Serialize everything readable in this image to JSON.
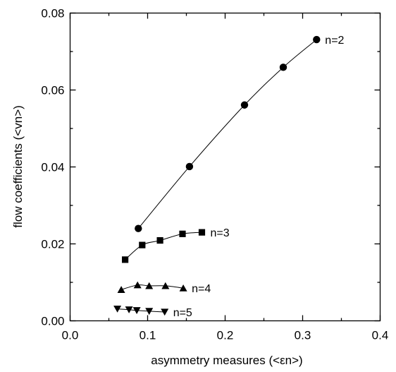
{
  "chart_data": {
    "type": "line",
    "xlabel": "asymmetry measures (<εn>)",
    "ylabel": "flow coefficients (<vn>)",
    "xlim": [
      0.0,
      0.4
    ],
    "ylim": [
      0.0,
      0.08
    ],
    "x_ticks": [
      "0.0",
      "0.1",
      "0.2",
      "0.3",
      "0.4"
    ],
    "y_ticks": [
      "0.00",
      "0.02",
      "0.04",
      "0.06",
      "0.08"
    ],
    "grid": false,
    "legend": "none",
    "series": [
      {
        "name": "n=2",
        "marker": "circle",
        "points": [
          [
            0.088,
            0.024
          ],
          [
            0.154,
            0.0401
          ],
          [
            0.225,
            0.0561
          ],
          [
            0.275,
            0.0659
          ],
          [
            0.318,
            0.0731
          ]
        ]
      },
      {
        "name": "n=3",
        "marker": "square",
        "points": [
          [
            0.071,
            0.0159
          ],
          [
            0.093,
            0.0197
          ],
          [
            0.116,
            0.0209
          ],
          [
            0.145,
            0.0226
          ],
          [
            0.17,
            0.023
          ]
        ]
      },
      {
        "name": "n=4",
        "marker": "triangle-up",
        "points": [
          [
            0.066,
            0.0081
          ],
          [
            0.087,
            0.0093
          ],
          [
            0.102,
            0.0091
          ],
          [
            0.123,
            0.0091
          ],
          [
            0.146,
            0.0085
          ]
        ]
      },
      {
        "name": "n=5",
        "marker": "triangle-down",
        "points": [
          [
            0.061,
            0.0031
          ],
          [
            0.076,
            0.0029
          ],
          [
            0.086,
            0.0027
          ],
          [
            0.102,
            0.0025
          ],
          [
            0.122,
            0.0023
          ]
        ]
      }
    ]
  }
}
